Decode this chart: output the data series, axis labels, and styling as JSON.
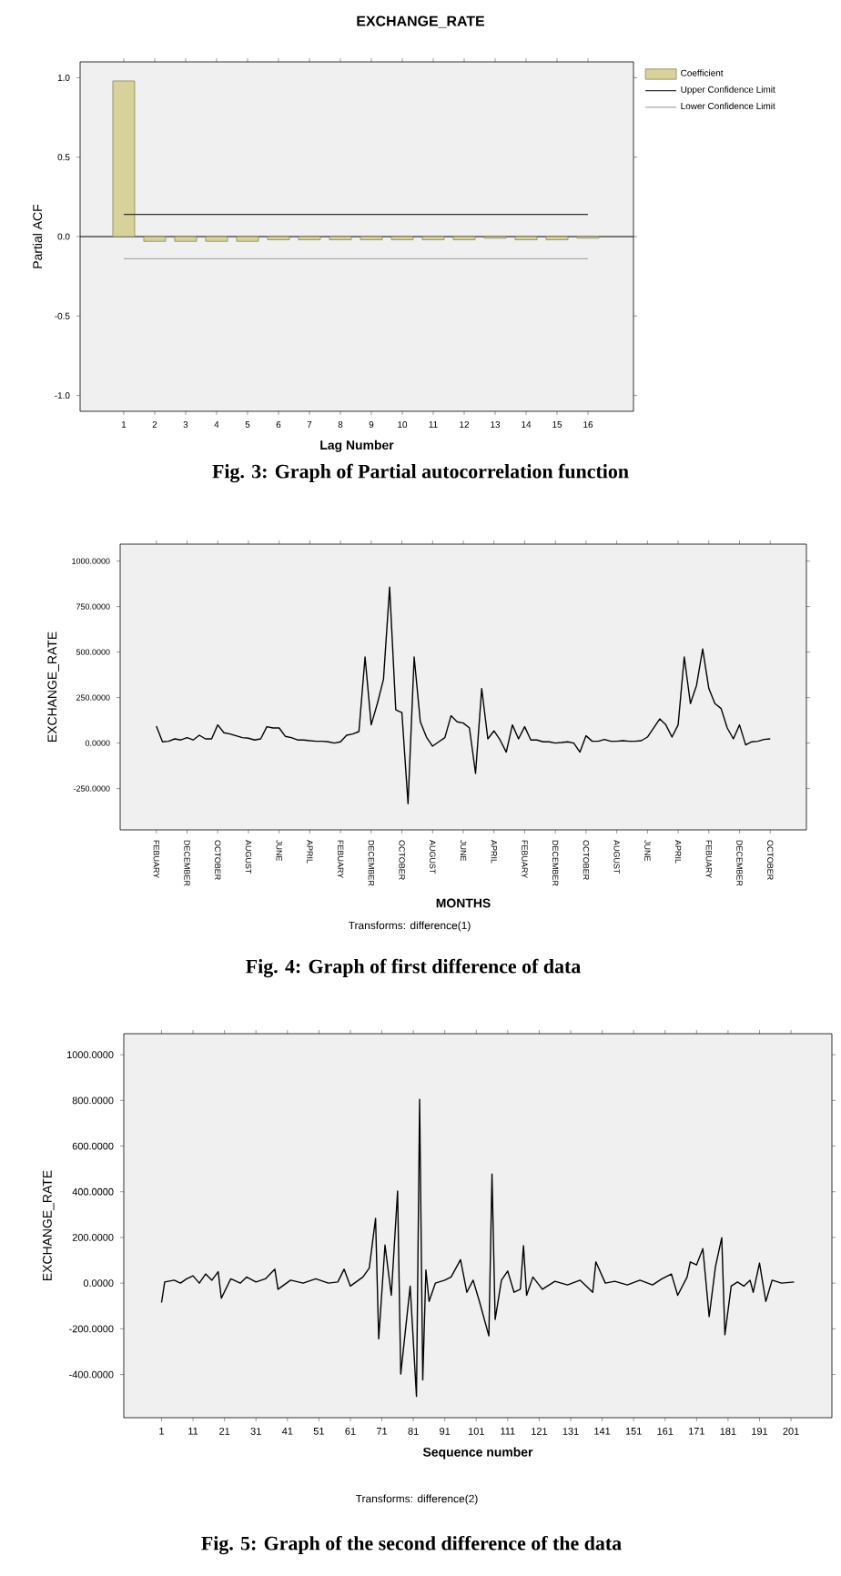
{
  "chart_data": [
    {
      "type": "bar",
      "title": "EXCHANGE_RATE",
      "xlabel": "Lag Number",
      "ylabel": "Partial ACF",
      "categories": [
        "1",
        "2",
        "3",
        "4",
        "5",
        "6",
        "7",
        "8",
        "9",
        "10",
        "11",
        "12",
        "13",
        "14",
        "15",
        "16"
      ],
      "series": [
        {
          "name": "Coefficient",
          "color": "#d6d29a",
          "values": [
            0.98,
            -0.03,
            -0.03,
            -0.03,
            -0.03,
            -0.02,
            -0.02,
            -0.02,
            -0.02,
            -0.02,
            -0.02,
            -0.02,
            -0.01,
            -0.02,
            -0.02,
            -0.01
          ]
        }
      ],
      "ylim": [
        -1.1,
        1.1
      ],
      "yticks": [
        {
          "value": -1,
          "label": "-1.0"
        },
        {
          "value": -0.5,
          "label": "-0.5"
        },
        {
          "value": 0,
          "label": "0.0"
        },
        {
          "value": 0.5,
          "label": "0.5"
        },
        {
          "value": 1,
          "label": "1.0"
        }
      ],
      "ref_lines": [
        {
          "axis": "y",
          "value": 0.14,
          "label": "Upper Confidence Limit",
          "color": "#333333"
        },
        {
          "axis": "y",
          "value": -0.14,
          "label": "Lower Confidence Limit",
          "color": "#aaaaaa"
        }
      ],
      "legend": "top right",
      "annotations": [
        "Fig. 3: Graph of Partial autocorrelation function"
      ]
    },
    {
      "type": "line",
      "xlabel": "MONTHS",
      "ylabel": "EXCHANGE_RATE",
      "categories": [
        "FEBUARY",
        null,
        null,
        null,
        null,
        "DECEMBER",
        null,
        null,
        null,
        null,
        "OCTOBER",
        null,
        null,
        null,
        null,
        "AUGUST",
        null,
        null,
        null,
        null,
        "JUNE",
        null,
        null,
        null,
        null,
        "APRIL",
        null,
        null,
        null,
        null,
        "FEBUARY",
        null,
        null,
        null,
        null,
        "DECEMBER",
        null,
        null,
        null,
        null,
        "OCTOBER",
        null,
        null,
        null,
        null,
        "AUGUST",
        null,
        null,
        null,
        null,
        "JUNE",
        null,
        null,
        null,
        null,
        "APRIL",
        null,
        null,
        null,
        null,
        "FEBUARY",
        null,
        null,
        null,
        null,
        "DECEMBER",
        null,
        null,
        null,
        null,
        "OCTOBER",
        null,
        null,
        null,
        null,
        "AUGUST",
        null,
        null,
        null,
        null,
        "JUNE",
        null,
        null,
        null,
        null,
        "APRIL",
        null,
        null,
        null,
        null,
        "FEBUARY",
        null,
        null,
        null,
        null,
        "DECEMBER",
        null,
        null,
        null,
        null,
        "OCTOBER"
      ],
      "series": [
        {
          "color": "#000000",
          "values": [
            93,
            7,
            10,
            23,
            17,
            30,
            17,
            43,
            23,
            23,
            100,
            57,
            50,
            40,
            30,
            27,
            17,
            23,
            90,
            83,
            83,
            37,
            30,
            17,
            17,
            13,
            10,
            10,
            7,
            0,
            7,
            43,
            50,
            63,
            473,
            100,
            217,
            350,
            857,
            183,
            167,
            -333,
            473,
            117,
            33,
            -17,
            7,
            30,
            150,
            117,
            110,
            83,
            -167,
            300,
            23,
            67,
            17,
            -50,
            100,
            23,
            90,
            17,
            17,
            7,
            7,
            0,
            3,
            7,
            0,
            -50,
            40,
            10,
            10,
            20,
            10,
            10,
            13,
            10,
            10,
            13,
            33,
            83,
            133,
            100,
            33,
            100,
            473,
            217,
            317,
            517,
            300,
            217,
            190,
            83,
            23,
            100,
            -10,
            7,
            10,
            20,
            23
          ]
        }
      ],
      "ylim": [
        -477,
        1093
      ],
      "yticks": [
        {
          "value": -250,
          "label": "-250.0000"
        },
        {
          "value": 0,
          "label": "0.0000"
        },
        {
          "value": 250,
          "label": "250.0000"
        },
        {
          "value": 500,
          "label": "500.0000"
        },
        {
          "value": 750,
          "label": "750.0000"
        },
        {
          "value": 1000,
          "label": "1000.0000"
        }
      ],
      "annotations": [
        "Transforms: difference(1)",
        "Fig. 4: Graph of first difference of data"
      ]
    },
    {
      "type": "line",
      "xlabel": "Sequence number",
      "ylabel": "EXCHANGE_RATE",
      "x": [
        1,
        2,
        5,
        7,
        9,
        11,
        13,
        15,
        17,
        19,
        20,
        23,
        26,
        28,
        31,
        34,
        37,
        38,
        42,
        46,
        50,
        54,
        57,
        59,
        61,
        65,
        67,
        69,
        70,
        72,
        74,
        76,
        77,
        80,
        82,
        83,
        84,
        85,
        86,
        88,
        91,
        93,
        96,
        98,
        100,
        102,
        105,
        106,
        107,
        109,
        111,
        113,
        115,
        116,
        117,
        119,
        122,
        126,
        130,
        134,
        136,
        138,
        139,
        142,
        145,
        149,
        153,
        157,
        160,
        163,
        165,
        168,
        169,
        171,
        173,
        175,
        177,
        179,
        180,
        182,
        184,
        186,
        188,
        189,
        191,
        193,
        195,
        198,
        202
      ],
      "series": [
        {
          "color": "#000000",
          "values": [
            -85,
            5,
            13,
            0,
            19,
            32,
            0,
            40,
            13,
            50,
            -66,
            19,
            0,
            27,
            5,
            19,
            61,
            -27,
            13,
            0,
            19,
            0,
            5,
            61,
            -13,
            27,
            66,
            284,
            -244,
            167,
            -53,
            403,
            -398,
            -13,
            -496,
            804,
            -424,
            58,
            -80,
            0,
            13,
            27,
            103,
            -40,
            13,
            -80,
            -231,
            478,
            -159,
            13,
            53,
            -40,
            -27,
            164,
            -53,
            27,
            -27,
            8,
            -8,
            13,
            -13,
            -40,
            93,
            0,
            8,
            -8,
            13,
            -8,
            19,
            40,
            -53,
            27,
            93,
            80,
            151,
            -146,
            72,
            199,
            -226,
            -13,
            5,
            -13,
            13,
            -40,
            88,
            -80,
            13,
            0,
            5
          ]
        }
      ],
      "xlim": [
        -11,
        214
      ],
      "xticks": [
        1,
        11,
        21,
        31,
        41,
        51,
        61,
        71,
        81,
        91,
        101,
        111,
        121,
        131,
        141,
        151,
        161,
        171,
        181,
        191,
        201
      ],
      "ylim": [
        -589,
        1092
      ],
      "yticks": [
        {
          "value": -400,
          "label": "-400.0000"
        },
        {
          "value": -200,
          "label": "-200.0000"
        },
        {
          "value": 0,
          "label": "0.0000"
        },
        {
          "value": 200,
          "label": "200.0000"
        },
        {
          "value": 400,
          "label": "400.0000"
        },
        {
          "value": 600,
          "label": "600.0000"
        },
        {
          "value": 800,
          "label": "800.0000"
        },
        {
          "value": 1000,
          "label": "1000.0000"
        }
      ],
      "annotations": [
        "Transforms: difference(2)",
        "Fig. 5: Graph of the second difference of the data"
      ]
    }
  ]
}
